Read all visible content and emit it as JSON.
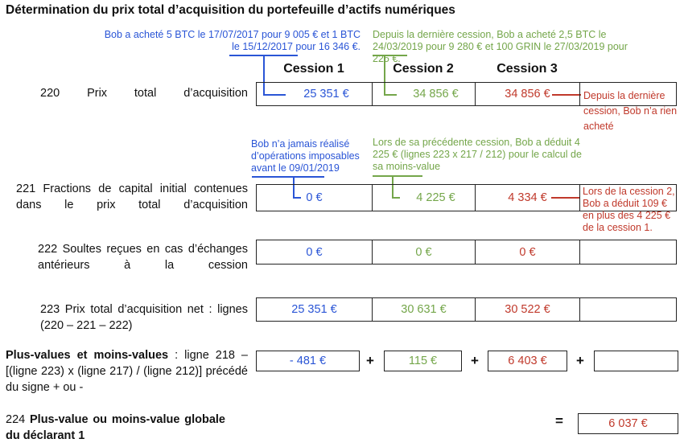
{
  "title": "Détermination du prix total d’acquisition du portefeuille d’actifs numériques",
  "headers": [
    "Cession 1",
    "Cession 2",
    "Cession 3"
  ],
  "colors": {
    "blue": "#2a55d6",
    "green": "#74a64a",
    "red": "#c0392b"
  },
  "notes": {
    "n220_blue": "Bob a acheté 5 BTC le 17/07/2017 pour 9 005 € et 1 BTC le 15/12/2017 pour 16 346 €.",
    "n220_green": "Depuis la dernière cession, Bob a acheté 2,5 BTC le 24/03/2019 pour 9 280 € et 100 GRIN le 27/03/2019 pour 225 €.",
    "n220_red": "Depuis la dernière cession, Bob n’a rien acheté",
    "n221_blue": "Bob n’a jamais réalisé d’opérations imposables avant le 09/01/2019",
    "n221_green": "Lors de sa précédente cession, Bob a déduit 4 225 € (lignes 223 x 217 / 212) pour le calcul de sa moins-value",
    "n221_red": "Lors de la cession 2, Bob a déduit 109 € en plus des 4 225 € de la cession 1."
  },
  "rows": [
    {
      "label": "220 Prix total d’acquisition",
      "values": [
        "25 351 €",
        "34 856 €",
        "34 856 €"
      ]
    },
    {
      "label": "221 Fractions de capital initial contenues dans le prix total d’acquisition",
      "values": [
        "0 €",
        "4 225 €",
        "4 334 €"
      ]
    },
    {
      "label": "222 Soultes reçues en cas d’échanges antérieurs à la cession",
      "values": [
        "0 €",
        "0 €",
        "0 €"
      ]
    },
    {
      "label": "223 Prix total d’acquisition net : lignes (220 – 221 – 222)",
      "values": [
        "25 351 €",
        "30 631 €",
        "30 522 €"
      ]
    }
  ],
  "plusvalues": {
    "label_bold": "Plus-values et moins-values",
    "label_rest": " : ligne 218 – [(ligne 223) x (ligne 217) / (ligne 212)] précédé du signe + ou -",
    "values": [
      "- 481 €",
      "115 €",
      "6 403 €",
      ""
    ],
    "plus": "+"
  },
  "total": {
    "label_num": "224 ",
    "label_bold": "Plus-value ou moins-value globale du déclarant 1",
    "equals": "=",
    "value": "6 037 €"
  }
}
